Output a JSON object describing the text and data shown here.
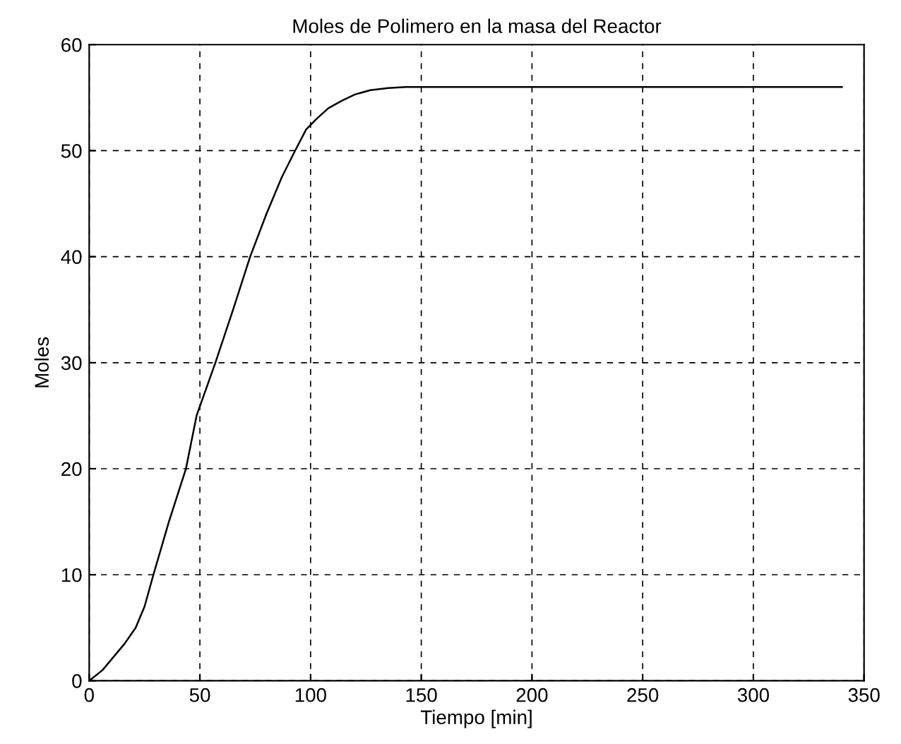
{
  "chart_data": {
    "type": "line",
    "title": "Moles de Polimero en la masa del Reactor",
    "xlabel": "Tiempo [min]",
    "ylabel": "Moles",
    "x": [
      0,
      6,
      10,
      16,
      21,
      25,
      29,
      36,
      43.7,
      48.5,
      57,
      65,
      72.7,
      80,
      87,
      93,
      98,
      102.7,
      108,
      114,
      120,
      127,
      135,
      143,
      200,
      260,
      340
    ],
    "series": [
      {
        "color": "#000000",
        "values": [
          0,
          1,
          2,
          3.5,
          5,
          7,
          10,
          15,
          20,
          25,
          30,
          35,
          40,
          44,
          47.5,
          50,
          52,
          53,
          54,
          54.7,
          55.3,
          55.7,
          55.9,
          56,
          56,
          56,
          56
        ]
      }
    ],
    "xlim": [
      0,
      350
    ],
    "ylim": [
      0,
      60
    ],
    "xticks": [
      0,
      50,
      100,
      150,
      200,
      250,
      300,
      350
    ],
    "yticks": [
      0,
      10,
      20,
      30,
      40,
      50,
      60
    ],
    "grid": true,
    "line_style": "solid",
    "marker": "none"
  }
}
